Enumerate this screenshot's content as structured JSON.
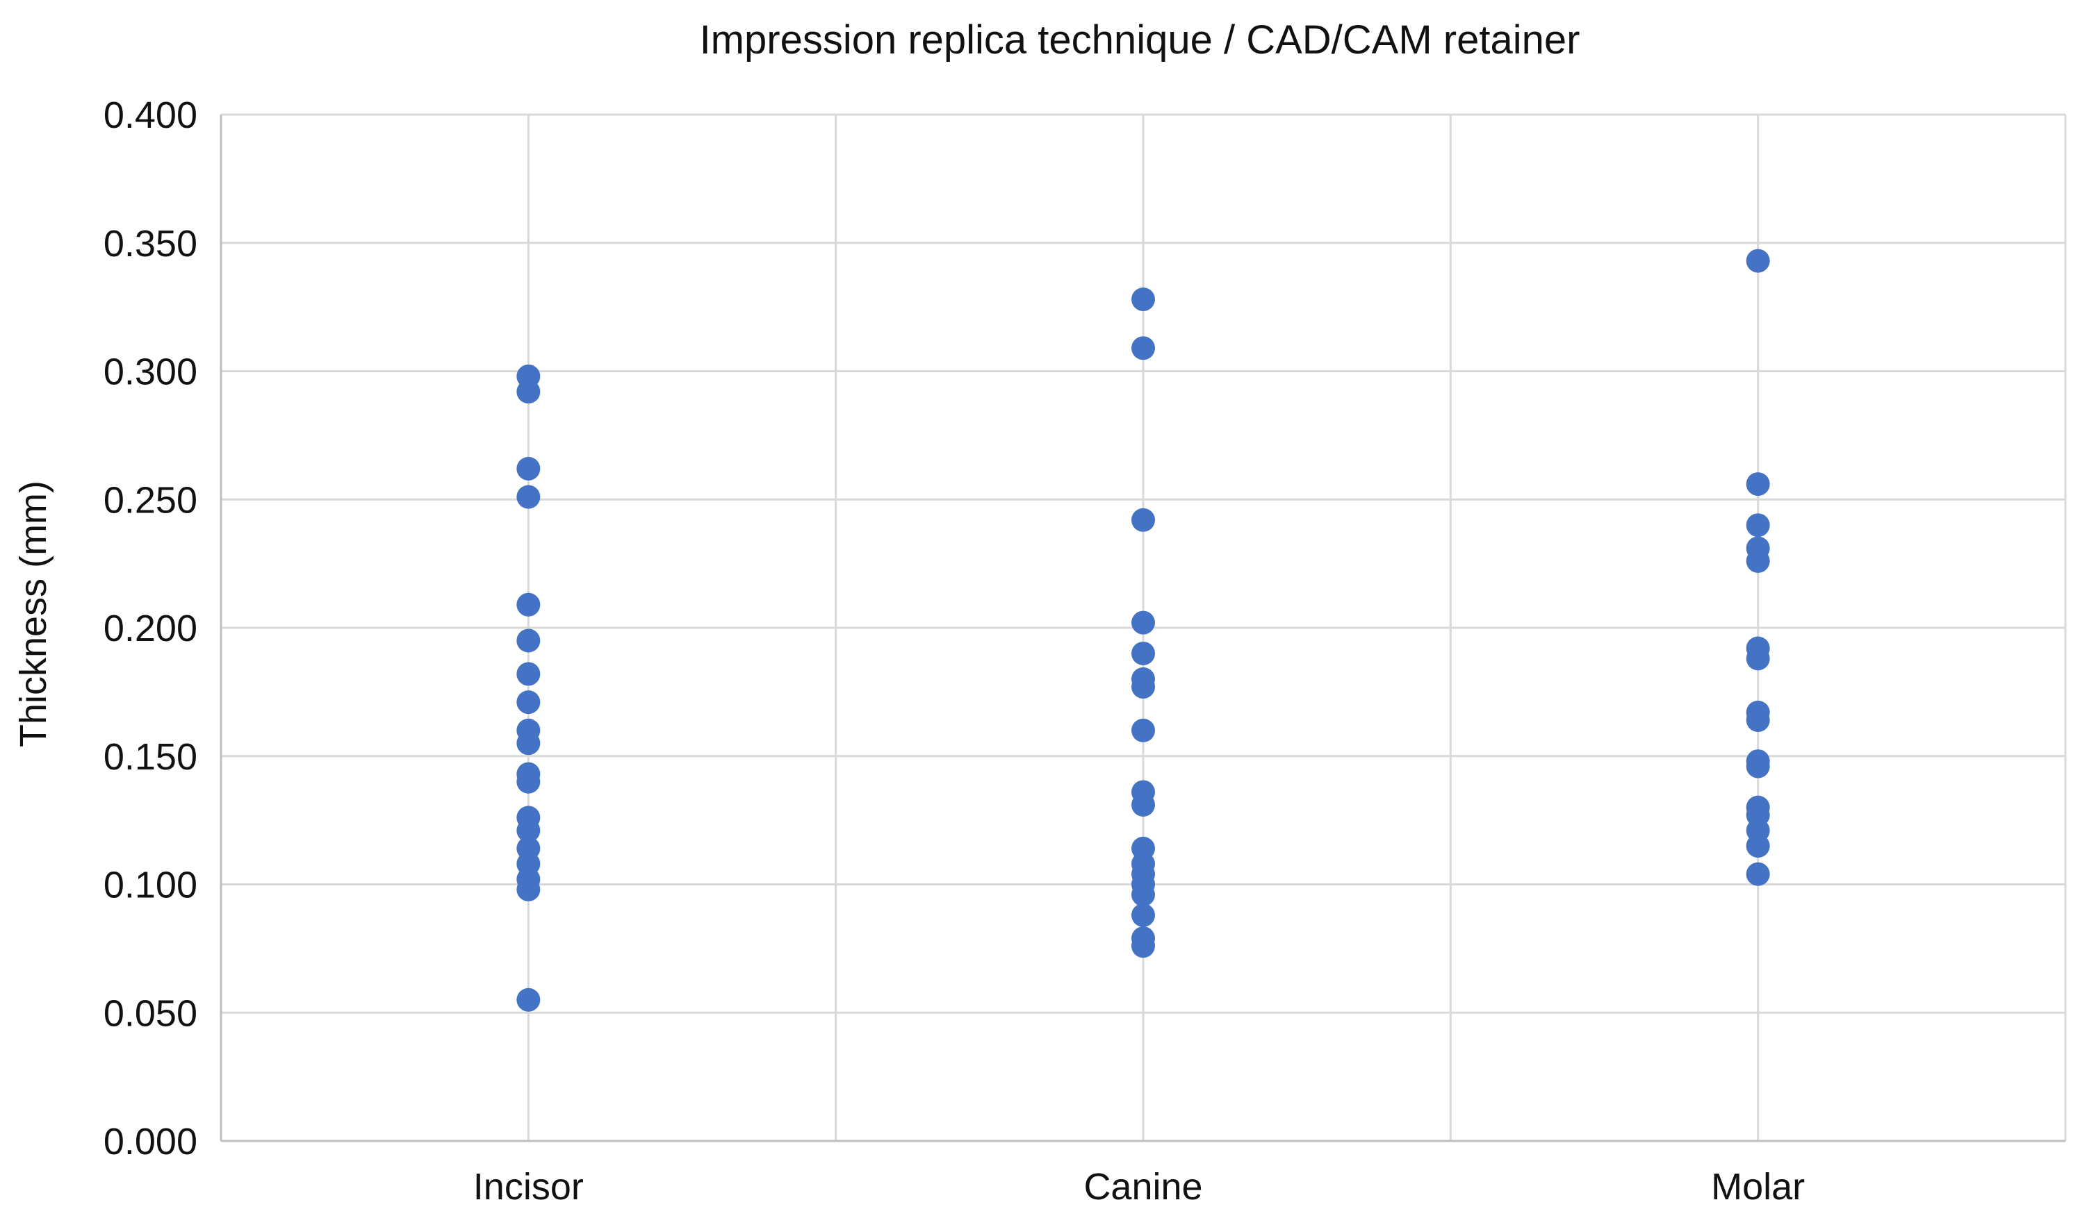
{
  "chart_data": {
    "type": "scatter",
    "title": "Impression replica technique / CAD/CAM retainer",
    "xlabel": "",
    "ylabel": "Thickness (mm)",
    "categories": [
      "Incisor",
      "Canine",
      "Molar"
    ],
    "ylim": [
      0,
      0.4
    ],
    "yticks": [
      "0.000",
      "0.050",
      "0.100",
      "0.150",
      "0.200",
      "0.250",
      "0.300",
      "0.350",
      "0.400"
    ],
    "grid": true,
    "legend": "none",
    "marker_color": "#4472C4",
    "grid_color": "#D9D9D9",
    "series": [
      {
        "category": "Incisor",
        "values": [
          0.298,
          0.292,
          0.262,
          0.251,
          0.209,
          0.195,
          0.182,
          0.171,
          0.16,
          0.155,
          0.143,
          0.14,
          0.126,
          0.121,
          0.114,
          0.108,
          0.102,
          0.098,
          0.055
        ]
      },
      {
        "category": "Canine",
        "values": [
          0.328,
          0.309,
          0.242,
          0.202,
          0.19,
          0.18,
          0.177,
          0.16,
          0.136,
          0.131,
          0.114,
          0.108,
          0.104,
          0.1,
          0.096,
          0.088,
          0.079,
          0.076
        ]
      },
      {
        "category": "Molar",
        "values": [
          0.343,
          0.256,
          0.24,
          0.231,
          0.226,
          0.192,
          0.188,
          0.167,
          0.164,
          0.148,
          0.146,
          0.13,
          0.127,
          0.121,
          0.115,
          0.104
        ]
      }
    ]
  }
}
